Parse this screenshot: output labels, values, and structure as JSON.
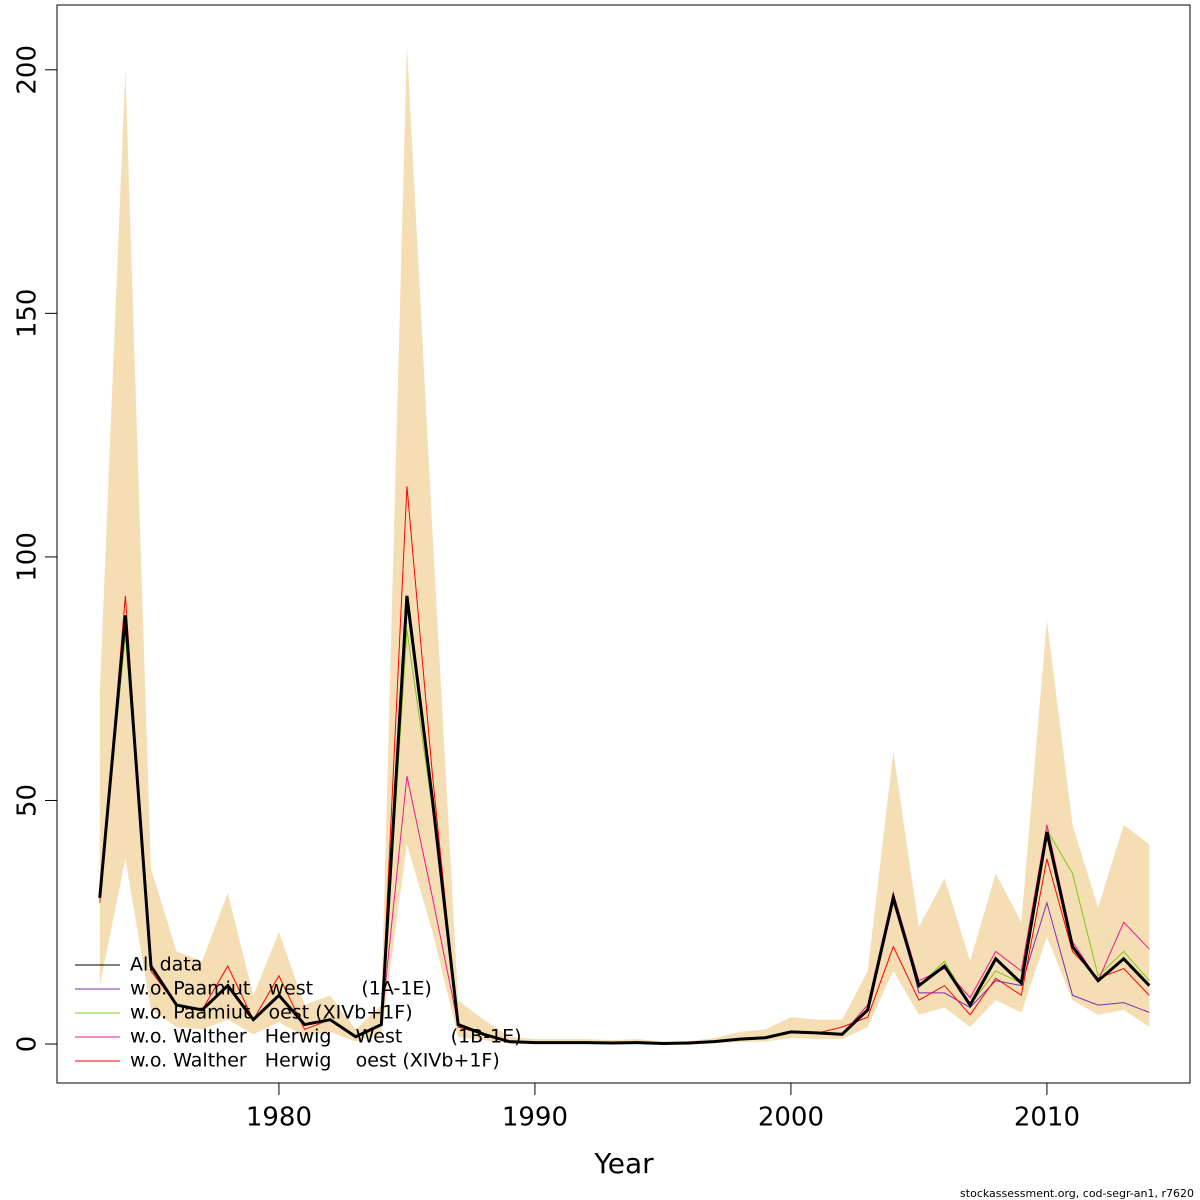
{
  "chart_data": {
    "type": "line",
    "x_label": "Year",
    "footer": "stockassessment.org, cod-segr-an1, r7620",
    "x": [
      1973,
      1974,
      1975,
      1976,
      1977,
      1978,
      1979,
      1980,
      1981,
      1982,
      1983,
      1984,
      1985,
      1986,
      1987,
      1988,
      1989,
      1990,
      1991,
      1992,
      1993,
      1994,
      1995,
      1996,
      1997,
      1998,
      1999,
      2000,
      2001,
      2002,
      2003,
      2004,
      2005,
      2006,
      2007,
      2008,
      2009,
      2010,
      2011,
      2012,
      2013,
      2014
    ],
    "xlim": [
      1971.33,
      2015.59
    ],
    "xticks": [
      1980,
      1990,
      2000,
      2010
    ],
    "ylim": [
      -8,
      213.3
    ],
    "yticks": [
      0,
      50,
      100,
      150,
      200
    ],
    "band": {
      "color": "#f5deb3",
      "upper": [
        72,
        200,
        36,
        19,
        17,
        31,
        10,
        23,
        8,
        10,
        3,
        8,
        205,
        105,
        9,
        5,
        1.5,
        1,
        1,
        1,
        0.8,
        1,
        0.5,
        0.6,
        1.2,
        2.5,
        3,
        5.5,
        5,
        5,
        15,
        60,
        24,
        34,
        17,
        35,
        25,
        87,
        45,
        28,
        45,
        41
      ],
      "lower": [
        12,
        38,
        7,
        3.5,
        3,
        5,
        2,
        4.5,
        1.5,
        2.5,
        0.5,
        2,
        41,
        23,
        1.5,
        0.8,
        0.1,
        0.1,
        0.1,
        0.1,
        0.1,
        0.1,
        0.1,
        0.1,
        0.2,
        0.4,
        0.5,
        1.2,
        1,
        1,
        3.5,
        15,
        6,
        7.5,
        3.5,
        9,
        6.5,
        22,
        9,
        6,
        7,
        3.5
      ]
    },
    "legend": "bottom-left",
    "series": [
      {
        "name": "All data",
        "color": "#000000",
        "width": 3,
        "values": [
          30,
          88,
          16,
          8,
          7,
          12,
          5,
          10,
          4,
          5,
          1.5,
          4,
          92,
          50,
          4,
          2,
          0.5,
          0.3,
          0.3,
          0.3,
          0.2,
          0.3,
          0.1,
          0.2,
          0.5,
          1,
          1.3,
          2.5,
          2.3,
          2,
          7,
          30,
          12,
          16,
          8,
          17.5,
          12.5,
          43.5,
          20,
          13,
          17.5,
          12
        ]
      },
      {
        "name": "w.o. Paamiut   west        (1A-1E)",
        "color": "#7a2fb5",
        "width": 1,
        "values": [
          30,
          87,
          16,
          8,
          7,
          12,
          5,
          10,
          4,
          5,
          1.5,
          4,
          90,
          50,
          4,
          2,
          0.5,
          0.3,
          0.3,
          0.3,
          0.2,
          0.3,
          0.1,
          0.2,
          0.5,
          1,
          1.3,
          2.5,
          2.3,
          2,
          8,
          31,
          10.5,
          10.5,
          7.5,
          13,
          12,
          29,
          10,
          8,
          8.5,
          6.5
        ]
      },
      {
        "name": "w.o. Paamiut   oest (XIVb+1F)",
        "color": "#7ec81a",
        "width": 1,
        "values": [
          30,
          84,
          16,
          8,
          7,
          12,
          5,
          10,
          4,
          5,
          1.5,
          4,
          85,
          48,
          4,
          2,
          0.5,
          0.3,
          0.3,
          0.3,
          0.2,
          0.3,
          0.1,
          0.2,
          0.5,
          1,
          1.3,
          2.5,
          2.3,
          2,
          7,
          29,
          12,
          17,
          8,
          15,
          12.5,
          44,
          35,
          14,
          19,
          13
        ]
      },
      {
        "name": "w.o. Walther   Herwig    West        (1B-1E)",
        "color": "#ee1a8c",
        "width": 1,
        "values": [
          30,
          86,
          16,
          8,
          7,
          12,
          5,
          10,
          4,
          5,
          1.5,
          4,
          55,
          30,
          4,
          2,
          0.5,
          0.3,
          0.3,
          0.3,
          0.2,
          0.3,
          0.1,
          0.2,
          0.5,
          1,
          1.3,
          2.5,
          2.3,
          2,
          8,
          31,
          13,
          15.5,
          9.5,
          19,
          15,
          45,
          21,
          13,
          25,
          19.5
        ]
      },
      {
        "name": "w.o. Walther   Herwig    oest (XIVb+1F)",
        "color": "#ff0000",
        "width": 1,
        "values": [
          29,
          92,
          15,
          8,
          7,
          16,
          5,
          14,
          3,
          5,
          1.5,
          4,
          114.5,
          55,
          3.5,
          2,
          0.5,
          0.3,
          0.3,
          0.3,
          0.2,
          0.3,
          0.1,
          0.2,
          0.5,
          1,
          1.3,
          2.3,
          2.2,
          3.5,
          5.5,
          20,
          9,
          12,
          6,
          13.5,
          10,
          38,
          19,
          13.5,
          15.5,
          10
        ]
      }
    ]
  }
}
